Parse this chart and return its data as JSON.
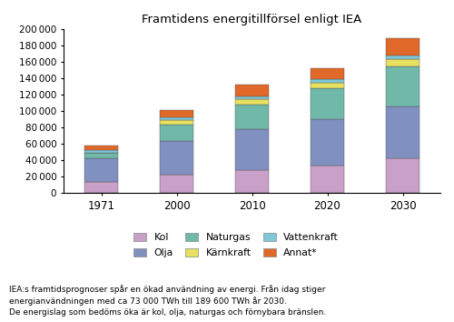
{
  "categories": [
    "1971",
    "2000",
    "2010",
    "2020",
    "2030"
  ],
  "series": {
    "Kol": [
      14000,
      23000,
      28000,
      34000,
      42000
    ],
    "Olja": [
      28000,
      41000,
      50000,
      56000,
      64000
    ],
    "Naturgas": [
      7000,
      20000,
      30000,
      38000,
      48000
    ],
    "Kärnkraft": [
      0,
      5500,
      7000,
      7000,
      9000
    ],
    "Vattenkraft": [
      4000,
      2500,
      3000,
      3500,
      5000
    ],
    "Annat*": [
      5000,
      9000,
      14000,
      14000,
      21000
    ]
  },
  "colors": {
    "Kol": "#c8a0c8",
    "Olja": "#8090c0",
    "Naturgas": "#70b8a8",
    "Kärnkraft": "#e8e060",
    "Vattenkraft": "#80c8d8",
    "Annat*": "#e06828"
  },
  "title": "Framtidens energitillförsel enligt IEA",
  "ylim": [
    0,
    200000
  ],
  "yticks": [
    0,
    20000,
    40000,
    60000,
    80000,
    100000,
    120000,
    140000,
    160000,
    180000,
    200000
  ],
  "stack_order": [
    "Kol",
    "Olja",
    "Naturgas",
    "Kärnkraft",
    "Vattenkraft",
    "Annat*"
  ],
  "legend_row1": [
    "Kol",
    "Olja",
    "Naturgas"
  ],
  "legend_row2": [
    "Kärnkraft",
    "Vattenkraft",
    "Annat*"
  ],
  "footnote_lines": [
    "IEA:s framtidsprognoser spår en ökad användning av energi. Från idag stiger",
    "energianvändningen med ca 73 000 TWh till 189 600 TWh år 2030.",
    "De energislag som bedöms öka är kol, olja, naturgas och förnybara bränslen."
  ],
  "bar_width": 0.45
}
